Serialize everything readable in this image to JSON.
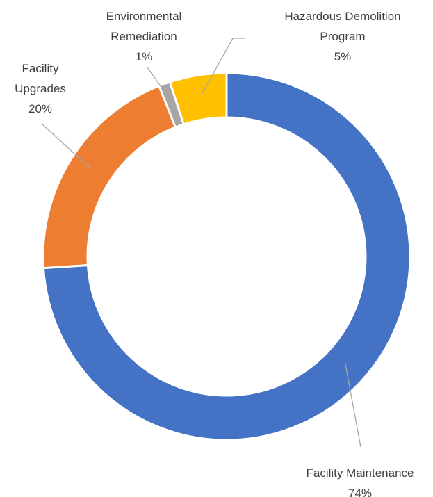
{
  "chart_data": {
    "type": "donut",
    "categories": [
      "Facility Maintenance",
      "Facility Upgrades",
      "Environmental Remediation",
      "Hazardous Demolition Program"
    ],
    "values": [
      74,
      20,
      1,
      5
    ],
    "value_labels": [
      "74%",
      "20%",
      "1%",
      "5%"
    ],
    "colors": [
      "#4472c4",
      "#ed7d31",
      "#a5a5a5",
      "#ffc000"
    ]
  }
}
